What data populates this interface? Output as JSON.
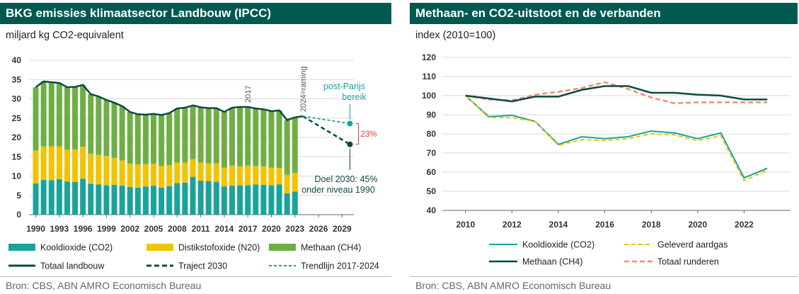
{
  "left_panel": {
    "title": "BKG emissies klimaatsector Landbouw (IPCC)",
    "unit": "miljard kg CO2-equivalent",
    "source": "Bron: CBS, ABN AMRO Economisch Bureau",
    "colors": {
      "co2": "#1aa39a",
      "n2o": "#f2c300",
      "ch4": "#6fae45",
      "total": "#0b4a3f",
      "trend": "#1aa39a",
      "gap": "#e03c31"
    },
    "annotations": {
      "year_2017": "2017",
      "forecast": "2024=raming",
      "post_paris_line1": "post-Parijs",
      "post_paris_line2": "bereik",
      "gap": "23%",
      "goal_line1": "Doel 2030: 45%",
      "goal_line2": "onder niveau 1990"
    },
    "chart_data": {
      "type": "bar",
      "x": [
        1990,
        1991,
        1992,
        1993,
        1994,
        1995,
        1996,
        1997,
        1998,
        1999,
        2000,
        2001,
        2002,
        2003,
        2004,
        2005,
        2006,
        2007,
        2008,
        2009,
        2010,
        2011,
        2012,
        2013,
        2014,
        2015,
        2016,
        2017,
        2018,
        2019,
        2020,
        2021,
        2022,
        2023,
        2024
      ],
      "xticks": [
        1990,
        1993,
        1996,
        1999,
        2002,
        2005,
        2008,
        2011,
        2014,
        2017,
        2020,
        2023,
        2026,
        2029
      ],
      "xlim": [
        1990,
        2030
      ],
      "ylim": [
        0,
        40
      ],
      "yticks": [
        0,
        5,
        10,
        15,
        20,
        25,
        30,
        35,
        40
      ],
      "series": [
        {
          "name": "Kooldioxide (CO2)",
          "values": [
            8.1,
            9.0,
            8.9,
            9.2,
            8.6,
            8.5,
            9.3,
            8.0,
            7.8,
            7.6,
            7.7,
            7.5,
            7.2,
            7.0,
            7.3,
            7.5,
            7.0,
            7.4,
            8.2,
            8.3,
            9.8,
            8.8,
            8.7,
            8.5,
            7.3,
            7.5,
            7.6,
            7.6,
            7.8,
            7.7,
            7.6,
            7.8,
            5.5,
            6.0,
            null
          ]
        },
        {
          "name": "Distikstofoxide (N20)",
          "values": [
            8.5,
            8.7,
            8.8,
            8.5,
            8.2,
            8.4,
            8.3,
            7.8,
            7.7,
            7.6,
            7.0,
            6.5,
            6.0,
            6.0,
            5.8,
            5.7,
            5.6,
            5.4,
            5.3,
            5.2,
            4.6,
            4.7,
            4.6,
            4.8,
            4.9,
            5.2,
            4.9,
            5.1,
            4.8,
            4.8,
            4.6,
            4.3,
            4.8,
            4.8,
            null
          ]
        },
        {
          "name": "Methaan (CH4)",
          "values": [
            16.4,
            16.8,
            16.6,
            16.4,
            16.2,
            16.2,
            16.0,
            15.4,
            15.1,
            14.5,
            14.3,
            14.1,
            13.4,
            13.0,
            12.8,
            12.9,
            13.2,
            13.5,
            14.0,
            14.2,
            13.9,
            14.3,
            14.3,
            14.3,
            14.4,
            15.0,
            15.4,
            15.2,
            14.9,
            14.8,
            14.6,
            14.9,
            14.2,
            14.4,
            null
          ]
        },
        {
          "name": "Totaal landbouw",
          "values": [
            33.0,
            34.5,
            34.3,
            34.1,
            33.0,
            33.1,
            33.6,
            31.2,
            30.6,
            29.7,
            29.0,
            28.1,
            26.6,
            26.0,
            25.9,
            26.1,
            25.8,
            26.3,
            27.5,
            27.7,
            28.3,
            27.8,
            27.6,
            27.6,
            26.6,
            27.7,
            27.9,
            27.9,
            27.5,
            27.3,
            26.8,
            27.0,
            24.5,
            25.2,
            25.5
          ]
        },
        {
          "name": "Traject 2030",
          "x": [
            2024,
            2030
          ],
          "values": [
            25.5,
            18.2
          ]
        },
        {
          "name": "Trendlijn 2017-2024",
          "x": [
            2024,
            2030
          ],
          "values": [
            25.5,
            23.6
          ]
        }
      ]
    }
  },
  "right_panel": {
    "title": "Methaan- en CO2-uitstoot en de verbanden",
    "unit": "index (2010=100)",
    "source": "Bron: CBS, ABN AMRO Economisch Bureau",
    "colors": {
      "co2": "#1aa39a",
      "ch4": "#0b4a3f",
      "gas": "#f2c300",
      "cattle": "#f08f72"
    },
    "chart_data": {
      "type": "line",
      "x": [
        2010,
        2011,
        2012,
        2013,
        2014,
        2015,
        2016,
        2017,
        2018,
        2019,
        2020,
        2021,
        2022,
        2023
      ],
      "xticks": [
        2010,
        2012,
        2014,
        2016,
        2018,
        2020,
        2022
      ],
      "xlim": [
        2009,
        2024
      ],
      "ylim": [
        40,
        120
      ],
      "yticks": [
        40,
        50,
        60,
        70,
        80,
        90,
        100,
        110,
        120
      ],
      "series": [
        {
          "name": "Kooldioxide (CO2)",
          "values": [
            100,
            89,
            89.7,
            86.5,
            74.5,
            78.5,
            77.5,
            78.5,
            81.5,
            80.5,
            77.5,
            80.5,
            57,
            62
          ]
        },
        {
          "name": "Geleverd aardgas",
          "values": [
            100,
            88.5,
            88.5,
            86.5,
            74,
            77,
            76.5,
            77.5,
            80,
            79.5,
            76.5,
            79,
            55.5,
            61
          ]
        },
        {
          "name": "Methaan (CH4)",
          "values": [
            100,
            98.5,
            97,
            99.5,
            99.5,
            103,
            105,
            105,
            101.5,
            101.5,
            100.5,
            100,
            98,
            98
          ]
        },
        {
          "name": "Totaal runderen",
          "values": [
            100,
            98,
            97.5,
            100.5,
            102,
            104,
            107,
            103.5,
            99,
            96,
            96.5,
            96.5,
            96.5,
            96.5
          ]
        }
      ]
    }
  }
}
